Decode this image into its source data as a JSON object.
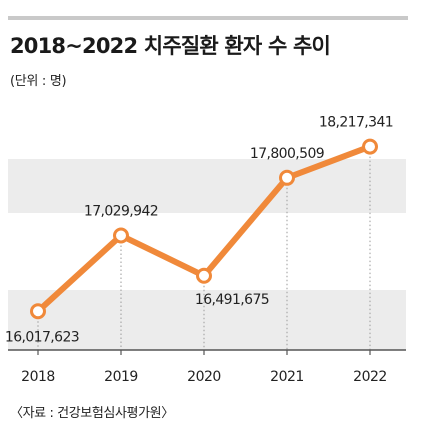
{
  "title": "2018~2022 치주질환 환자 수 추이",
  "unit_label": "(단위 : 명)",
  "source": "〈자료 : 건강보험심사평가원〉",
  "colors": {
    "line": "#f0893a",
    "band": "#ececec",
    "rule": "#c9c9c9",
    "text": "#222222"
  },
  "chart_data": {
    "type": "line",
    "x": [
      "2018",
      "2019",
      "2020",
      "2021",
      "2022"
    ],
    "series": [
      {
        "values": [
          16017623,
          17029942,
          16491675,
          17800509,
          18217341
        ]
      }
    ],
    "data_labels": [
      "16,017,623",
      "17,029,942",
      "16,491,675",
      "17,800,509",
      "18,217,341"
    ],
    "ylim": [
      15500000,
      18800000
    ],
    "grid": "alternating horizontal bands",
    "xlabel": "",
    "ylabel": ""
  }
}
